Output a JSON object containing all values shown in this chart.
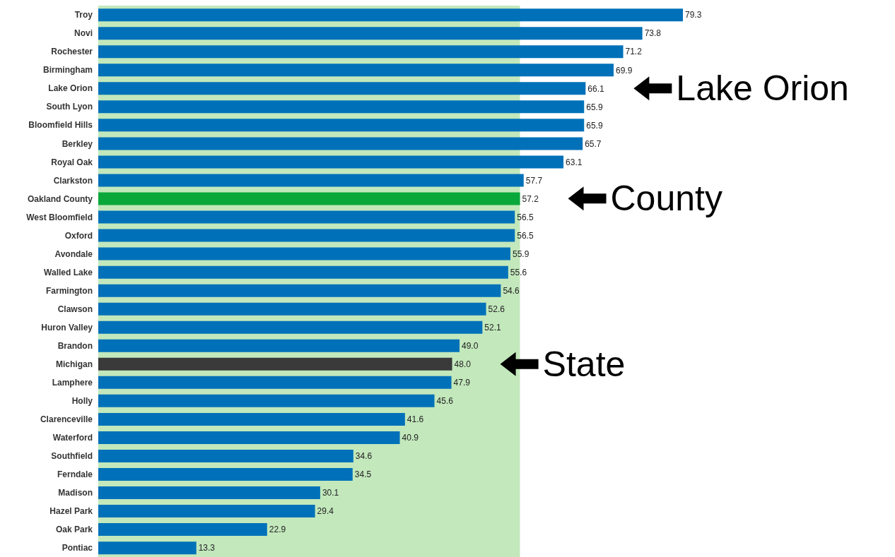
{
  "chart_data": {
    "type": "bar",
    "orientation": "horizontal",
    "value_labels": [
      "79.3",
      "73.8",
      "71.2",
      "69.9",
      "66.1",
      "65.9",
      "65.9",
      "65.7",
      "63.1",
      "57.7",
      "57.2",
      "56.5",
      "56.5",
      "55.9",
      "55.6",
      "54.6",
      "52.6",
      "52.1",
      "49.0",
      "48.0",
      "47.9",
      "45.6",
      "41.6",
      "40.9",
      "34.6",
      "34.5",
      "30.1",
      "29.4",
      "22.9",
      "13.3"
    ],
    "categories": [
      "Troy",
      "Novi",
      "Rochester",
      "Birmingham",
      "Lake Orion",
      "South Lyon",
      "Bloomfield Hills",
      "Berkley",
      "Royal Oak",
      "Clarkston",
      "Oakland County",
      "West Bloomfield",
      "Oxford",
      "Avondale",
      "Walled Lake",
      "Farmington",
      "Clawson",
      "Huron Valley",
      "Brandon",
      "Michigan",
      "Lamphere",
      "Holly",
      "Clarenceville",
      "Waterford",
      "Southfield",
      "Ferndale",
      "Madison",
      "Hazel Park",
      "Oak Park",
      "Pontiac"
    ],
    "values": [
      79.3,
      73.8,
      71.2,
      69.9,
      66.1,
      65.9,
      65.9,
      65.7,
      63.1,
      57.7,
      57.2,
      56.5,
      56.5,
      55.9,
      55.6,
      54.6,
      52.6,
      52.1,
      49.0,
      48.0,
      47.9,
      45.6,
      41.6,
      40.9,
      34.6,
      34.5,
      30.1,
      29.4,
      22.9,
      13.3
    ],
    "colors": [
      "#0071b9",
      "#0071b9",
      "#0071b9",
      "#0071b9",
      "#0071b9",
      "#0071b9",
      "#0071b9",
      "#0071b9",
      "#0071b9",
      "#0071b9",
      "#0aa83b",
      "#0071b9",
      "#0071b9",
      "#0071b9",
      "#0071b9",
      "#0071b9",
      "#0071b9",
      "#0071b9",
      "#0071b9",
      "#3a3a3a",
      "#0071b9",
      "#0071b9",
      "#0071b9",
      "#0071b9",
      "#0071b9",
      "#0071b9",
      "#0071b9",
      "#0071b9",
      "#0071b9",
      "#0071b9"
    ],
    "bands": [
      {
        "axis": "x",
        "from": 0,
        "to": 57.2,
        "color": "#c3e8bc"
      }
    ],
    "annotations": [
      {
        "text": "Lake Orion",
        "x": 66.1,
        "y": "Lake Orion"
      },
      {
        "text": "County",
        "x": 57.2,
        "y": "Oakland County"
      },
      {
        "text": "State",
        "x": 48.0,
        "y": "Michigan"
      }
    ]
  }
}
